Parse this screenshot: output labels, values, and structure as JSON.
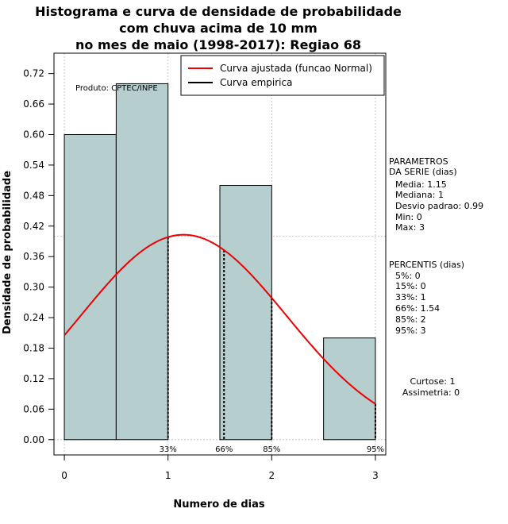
{
  "chart_data": {
    "type": "histogram",
    "title_lines": [
      "Histograma e curva de densidade de probabilidade",
      "com chuva acima de 10 mm",
      "no mes de maio (1998-2017): Regiao 68"
    ],
    "xlabel": "Numero de dias",
    "ylabel": "Densidade de probabilidade",
    "xlim": [
      -0.1,
      3.1
    ],
    "ylim": [
      -0.03,
      0.76
    ],
    "x_ticks": [
      0,
      1,
      2,
      3
    ],
    "y_ticks": [
      0.0,
      0.06,
      0.12,
      0.18,
      0.24,
      0.3,
      0.36,
      0.42,
      0.48,
      0.54,
      0.6,
      0.66,
      0.72
    ],
    "y_tick_labels": [
      "0.00",
      "0.06",
      "0.12",
      "0.18",
      "0.24",
      "0.30",
      "0.36",
      "0.42",
      "0.48",
      "0.54",
      "0.60",
      "0.66",
      "0.72"
    ],
    "bars": [
      {
        "x0": 0.0,
        "x1": 0.5,
        "value": 0.6
      },
      {
        "x0": 0.5,
        "x1": 1.0,
        "value": 0.7
      },
      {
        "x0": 1.5,
        "x1": 2.0,
        "value": 0.5
      },
      {
        "x0": 2.5,
        "x1": 3.0,
        "value": 0.2
      }
    ],
    "bar_color": "#b6cece",
    "curve": {
      "name": "Curva ajustada (funcao Normal)",
      "mean": 1.15,
      "sd": 0.99,
      "x_from": 0,
      "x_to": 3,
      "color": "#ee0000"
    },
    "empirical_legend": "Curva empirica",
    "h_ref_line": 0.4,
    "percentile_markers": [
      {
        "x": 1.0,
        "label": "33%"
      },
      {
        "x": 1.54,
        "label": "66%"
      },
      {
        "x": 2.0,
        "label": "85%"
      },
      {
        "x": 3.0,
        "label": "95%"
      }
    ],
    "product_label": "Produto: CPTEC/INPE",
    "params_title": [
      "PARAMETROS",
      "DA SERIE (dias)"
    ],
    "params": [
      "Media: 1.15",
      "Mediana: 1",
      "Desvio padrao: 0.99",
      "Min: 0",
      "Max: 3"
    ],
    "percentis_title": "PERCENTIS (dias)",
    "percentis": [
      "5%: 0",
      "15%: 0",
      "33%: 1",
      "66%: 1.54",
      "85%: 2",
      "95%: 3"
    ],
    "shape_stats": [
      "Curtose: 1",
      "Assimetria: 0"
    ]
  }
}
